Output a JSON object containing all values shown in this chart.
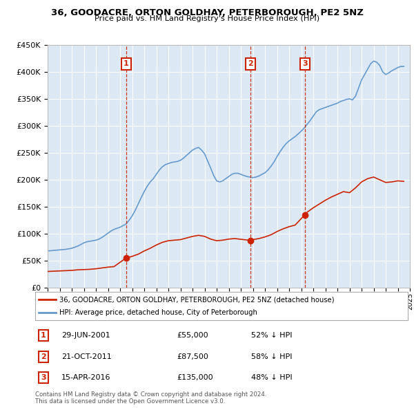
{
  "title": "36, GOODACRE, ORTON GOLDHAY, PETERBOROUGH, PE2 5NZ",
  "subtitle": "Price paid vs. HM Land Registry's House Price Index (HPI)",
  "title_fontsize": 10,
  "subtitle_fontsize": 8.5,
  "plot_bg_color": "#dce9f5",
  "ylim": [
    0,
    450000
  ],
  "yticks": [
    0,
    50000,
    100000,
    150000,
    200000,
    250000,
    300000,
    350000,
    400000,
    450000
  ],
  "ytick_labels": [
    "£0",
    "£50K",
    "£100K",
    "£150K",
    "£200K",
    "£250K",
    "£300K",
    "£350K",
    "£400K",
    "£450K"
  ],
  "sales": [
    {
      "date": "29-JUN-2001",
      "price": 55000,
      "label": "1",
      "year": 2001.5
    },
    {
      "date": "21-OCT-2011",
      "price": 87500,
      "label": "2",
      "year": 2011.8
    },
    {
      "date": "15-APR-2016",
      "price": 135000,
      "label": "3",
      "year": 2016.3
    }
  ],
  "sale_pct": [
    "52% ↓ HPI",
    "58% ↓ HPI",
    "48% ↓ HPI"
  ],
  "hpi_color": "#6699cc",
  "property_color": "#cc2200",
  "marker_box_color": "#cc2200",
  "legend_label_property": "36, GOODACRE, ORTON GOLDHAY, PETERBOROUGH, PE2 5NZ (detached house)",
  "legend_label_hpi": "HPI: Average price, detached house, City of Peterborough",
  "footer1": "Contains HM Land Registry data © Crown copyright and database right 2024.",
  "footer2": "This data is licensed under the Open Government Licence v3.0.",
  "hpi_data_x": [
    1995.0,
    1995.25,
    1995.5,
    1995.75,
    1996.0,
    1996.25,
    1996.5,
    1996.75,
    1997.0,
    1997.25,
    1997.5,
    1997.75,
    1998.0,
    1998.25,
    1998.5,
    1998.75,
    1999.0,
    1999.25,
    1999.5,
    1999.75,
    2000.0,
    2000.25,
    2000.5,
    2000.75,
    2001.0,
    2001.25,
    2001.5,
    2001.75,
    2002.0,
    2002.25,
    2002.5,
    2002.75,
    2003.0,
    2003.25,
    2003.5,
    2003.75,
    2004.0,
    2004.25,
    2004.5,
    2004.75,
    2005.0,
    2005.25,
    2005.5,
    2005.75,
    2006.0,
    2006.25,
    2006.5,
    2006.75,
    2007.0,
    2007.25,
    2007.5,
    2007.75,
    2008.0,
    2008.25,
    2008.5,
    2008.75,
    2009.0,
    2009.25,
    2009.5,
    2009.75,
    2010.0,
    2010.25,
    2010.5,
    2010.75,
    2011.0,
    2011.25,
    2011.5,
    2011.75,
    2012.0,
    2012.25,
    2012.5,
    2012.75,
    2013.0,
    2013.25,
    2013.5,
    2013.75,
    2014.0,
    2014.25,
    2014.5,
    2014.75,
    2015.0,
    2015.25,
    2015.5,
    2015.75,
    2016.0,
    2016.25,
    2016.5,
    2016.75,
    2017.0,
    2017.25,
    2017.5,
    2017.75,
    2018.0,
    2018.25,
    2018.5,
    2018.75,
    2019.0,
    2019.25,
    2019.5,
    2019.75,
    2020.0,
    2020.25,
    2020.5,
    2020.75,
    2021.0,
    2021.25,
    2021.5,
    2021.75,
    2022.0,
    2022.25,
    2022.5,
    2022.75,
    2023.0,
    2023.25,
    2023.5,
    2023.75,
    2024.0,
    2024.25,
    2024.5
  ],
  "hpi_data_y": [
    68000,
    68500,
    69000,
    69500,
    70000,
    70500,
    71000,
    72000,
    73000,
    75000,
    77000,
    80000,
    83000,
    85000,
    86000,
    87000,
    88000,
    90000,
    93000,
    97000,
    101000,
    105000,
    108000,
    110000,
    112000,
    115000,
    118000,
    125000,
    133000,
    143000,
    155000,
    167000,
    178000,
    188000,
    196000,
    202000,
    210000,
    218000,
    224000,
    228000,
    230000,
    232000,
    233000,
    234000,
    236000,
    240000,
    245000,
    250000,
    255000,
    258000,
    260000,
    255000,
    248000,
    235000,
    222000,
    208000,
    198000,
    196000,
    198000,
    202000,
    206000,
    210000,
    212000,
    212000,
    210000,
    208000,
    206000,
    205000,
    204000,
    205000,
    207000,
    210000,
    213000,
    218000,
    225000,
    233000,
    243000,
    252000,
    260000,
    267000,
    272000,
    276000,
    280000,
    285000,
    290000,
    296000,
    303000,
    310000,
    318000,
    326000,
    330000,
    332000,
    334000,
    336000,
    338000,
    340000,
    342000,
    345000,
    347000,
    349000,
    350000,
    348000,
    355000,
    370000,
    385000,
    395000,
    405000,
    415000,
    420000,
    418000,
    412000,
    400000,
    395000,
    398000,
    402000,
    405000,
    408000,
    410000,
    410000
  ],
  "property_data_x": [
    1995.0,
    1995.5,
    1996.0,
    1996.5,
    1997.0,
    1997.5,
    1998.0,
    1998.5,
    1999.0,
    1999.5,
    2000.0,
    2000.5,
    2001.5,
    2002.0,
    2002.5,
    2003.0,
    2003.5,
    2004.0,
    2004.5,
    2005.0,
    2005.5,
    2006.0,
    2006.5,
    2007.0,
    2007.5,
    2008.0,
    2008.5,
    2009.0,
    2009.5,
    2010.0,
    2010.5,
    2011.8,
    2012.0,
    2012.5,
    2013.0,
    2013.5,
    2014.0,
    2014.5,
    2015.0,
    2015.5,
    2016.3,
    2016.5,
    2017.0,
    2017.5,
    2018.0,
    2018.5,
    2019.0,
    2019.5,
    2020.0,
    2020.5,
    2021.0,
    2021.5,
    2022.0,
    2022.5,
    2023.0,
    2023.5,
    2024.0,
    2024.5
  ],
  "property_data_y": [
    30000,
    30500,
    31000,
    31500,
    32000,
    33000,
    33500,
    34000,
    35000,
    36500,
    38000,
    39000,
    55000,
    58000,
    62000,
    68000,
    73000,
    79000,
    84000,
    87000,
    88000,
    89000,
    92000,
    95000,
    97000,
    95000,
    90000,
    87000,
    88000,
    90000,
    91000,
    87500,
    89000,
    91000,
    94000,
    98000,
    104000,
    109000,
    113000,
    116000,
    135000,
    140000,
    148000,
    155000,
    162000,
    168000,
    173000,
    178000,
    176000,
    185000,
    196000,
    202000,
    205000,
    200000,
    195000,
    196000,
    198000,
    197000
  ]
}
